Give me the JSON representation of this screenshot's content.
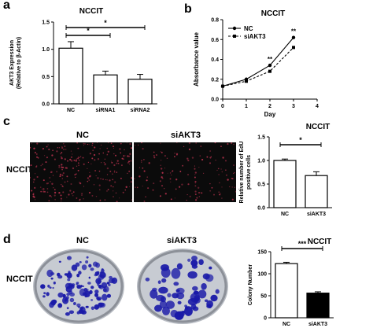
{
  "panel_labels": [
    "a",
    "b",
    "c",
    "d"
  ],
  "row_label_c": "NCCIT",
  "row_label_d": "NCCIT",
  "image_labels_c": [
    "NC",
    "siAKT3"
  ],
  "image_labels_d": [
    "NC",
    "siAKT3"
  ],
  "colors": {
    "accent": "#1a1aa8",
    "dark": "#0b0b0b",
    "edu_dot": "#b0304a"
  },
  "chart_data": [
    {
      "id": "a",
      "type": "bar",
      "title": "NCCIT",
      "ylabel": "AKT3 Expression",
      "ylabel2": "(Relative to β-Actin)",
      "categories": [
        "NC",
        "siRNA1",
        "siRNA2"
      ],
      "values": [
        1.02,
        0.53,
        0.45
      ],
      "errors": [
        0.12,
        0.07,
        0.09
      ],
      "ylim": [
        0,
        1.5
      ],
      "yticks": [
        "0.0",
        "0.5",
        "1.0",
        "1.5"
      ],
      "significance": [
        {
          "from": 0,
          "to": 1,
          "label": "*"
        },
        {
          "from": 0,
          "to": 2,
          "label": "*"
        }
      ]
    },
    {
      "id": "b",
      "type": "line",
      "title": "NCCIT",
      "xlabel": "Day",
      "ylabel": "Absorbance value",
      "xlim": [
        0,
        4
      ],
      "ylim": [
        0.0,
        0.8
      ],
      "xticks": [
        "0",
        "1",
        "2",
        "3",
        "4"
      ],
      "yticks": [
        "0.0",
        "0.2",
        "0.4",
        "0.6",
        "0.8"
      ],
      "x": [
        0,
        1,
        2,
        3
      ],
      "series": [
        {
          "name": "NC",
          "values": [
            0.13,
            0.2,
            0.34,
            0.62
          ],
          "marker": "circle"
        },
        {
          "name": "siAKT3",
          "values": [
            0.13,
            0.18,
            0.28,
            0.52
          ],
          "marker": "square"
        }
      ],
      "annotations": [
        {
          "x": 2,
          "label": "**"
        },
        {
          "x": 3,
          "label": "**"
        }
      ]
    },
    {
      "id": "c",
      "type": "bar",
      "title": "NCCIT",
      "ylabel": "Relative number of EdU",
      "ylabel2": "positive cells",
      "categories": [
        "NC",
        "siAKT3"
      ],
      "values": [
        1.0,
        0.68
      ],
      "errors": [
        0.03,
        0.08
      ],
      "ylim": [
        0,
        1.5
      ],
      "yticks": [
        "0.0",
        "0.5",
        "1.0",
        "1.5"
      ],
      "significance": [
        {
          "from": 0,
          "to": 1,
          "label": "*"
        }
      ]
    },
    {
      "id": "d",
      "type": "bar",
      "title": "NCCIT",
      "ylabel": "Colony Number",
      "categories": [
        "NC",
        "siAKT3"
      ],
      "values": [
        123,
        56
      ],
      "errors": [
        3,
        3
      ],
      "ylim": [
        0,
        150
      ],
      "yticks": [
        "0",
        "50",
        "100",
        "150"
      ],
      "significance": [
        {
          "from": 0,
          "to": 1,
          "label": "***"
        }
      ]
    }
  ]
}
